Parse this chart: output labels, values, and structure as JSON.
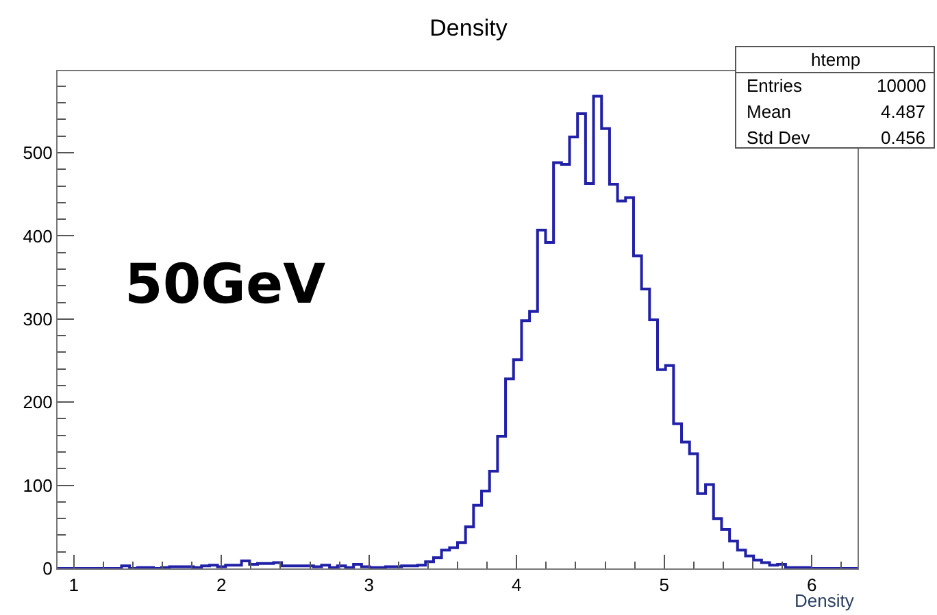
{
  "chart_data": {
    "type": "histogram",
    "title": "Density",
    "xlabel": "Density",
    "bins": [
      0.89,
      0.9442,
      0.9984,
      1.0526,
      1.1068,
      1.161,
      1.2152,
      1.2694,
      1.3236,
      1.3778,
      1.432,
      1.4862,
      1.5404,
      1.5946,
      1.6488,
      1.703,
      1.7572,
      1.8114,
      1.8656,
      1.9198,
      1.974,
      2.0282,
      2.0824,
      2.1366,
      2.1908,
      2.245,
      2.2992,
      2.3534,
      2.4076,
      2.4618,
      2.516,
      2.5702,
      2.6244,
      2.6786,
      2.7328,
      2.787,
      2.8412,
      2.8954,
      2.9496,
      3.0038,
      3.058,
      3.1122,
      3.1664,
      3.2206,
      3.2748,
      3.329,
      3.3832,
      3.4374,
      3.4916,
      3.5458,
      3.6,
      3.6542,
      3.7084,
      3.7626,
      3.8168,
      3.871,
      3.9252,
      3.9794,
      4.0336,
      4.0878,
      4.142,
      4.1962,
      4.2504,
      4.3046,
      4.3588,
      4.413,
      4.4672,
      4.5214,
      4.5756,
      4.6298,
      4.684,
      4.7382,
      4.7924,
      4.8466,
      4.9008,
      4.955,
      5.0092,
      5.0634,
      5.1176,
      5.1718,
      5.226,
      5.2802,
      5.3344,
      5.3886,
      5.4428,
      5.497,
      5.5512,
      5.6054,
      5.6596,
      5.7138,
      5.768,
      5.8222,
      5.8764,
      5.9306,
      5.9848,
      6.039,
      6.0932,
      6.1474,
      6.2016,
      6.2558,
      6.31
    ],
    "values": [
      0,
      0,
      0,
      0,
      0,
      0,
      0,
      0,
      3,
      0,
      1,
      1,
      0,
      1,
      2,
      2,
      2,
      1,
      3,
      4,
      2,
      4,
      4,
      9,
      5,
      6,
      6,
      7,
      3,
      3,
      3,
      3,
      2,
      4,
      1,
      3,
      1,
      5,
      2,
      1,
      1,
      2,
      2,
      3,
      3,
      4,
      8,
      13,
      22,
      25,
      31,
      50,
      76,
      93,
      117,
      159,
      228,
      251,
      298,
      309,
      407,
      392,
      488,
      486,
      519,
      547,
      463,
      568,
      529,
      462,
      442,
      446,
      376,
      336,
      299,
      239,
      244,
      174,
      152,
      138,
      90,
      101,
      60,
      47,
      33,
      22,
      15,
      10,
      7,
      4,
      5,
      1,
      1,
      1,
      0,
      0,
      0,
      0,
      0,
      0
    ],
    "color": "#2121a8",
    "xlim": [
      0.89,
      6.31
    ],
    "xticks": [
      1,
      2,
      3,
      4,
      5,
      6
    ],
    "ylim": [
      0,
      598
    ],
    "yticks": [
      0,
      100,
      200,
      300,
      400,
      500
    ],
    "annotations": [
      "50GeV",
      "htemp",
      "Entries 10000",
      "Mean 4.487",
      "Std Dev 0.456"
    ]
  }
}
